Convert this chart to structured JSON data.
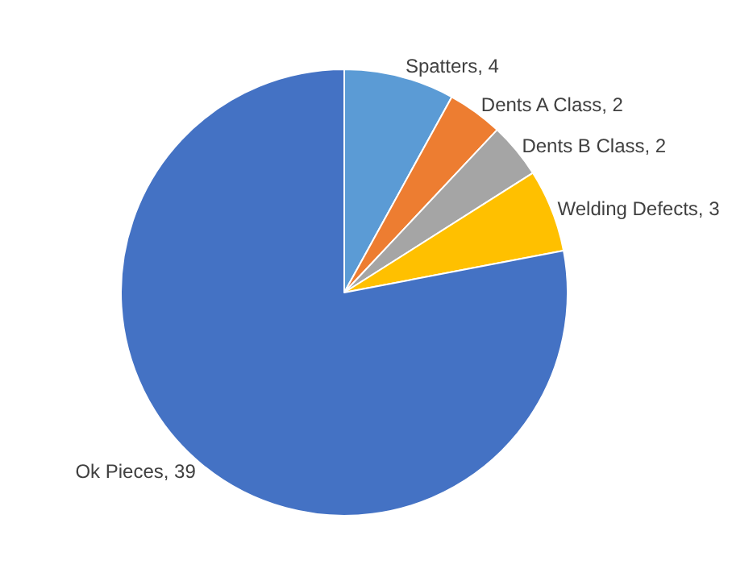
{
  "chart_data": {
    "type": "pie",
    "categories": [
      "Spatters",
      "Dents A Class",
      "Dents B Class",
      "Welding Defects",
      "Ok Pieces"
    ],
    "values": [
      4,
      2,
      2,
      3,
      39
    ],
    "colors": [
      "#5b9bd5",
      "#ed7d31",
      "#a5a5a5",
      "#ffc000",
      "#4472c4"
    ],
    "value_labels": [
      ", 4",
      ", 2",
      ", 2",
      ", 3",
      ", 39"
    ]
  }
}
